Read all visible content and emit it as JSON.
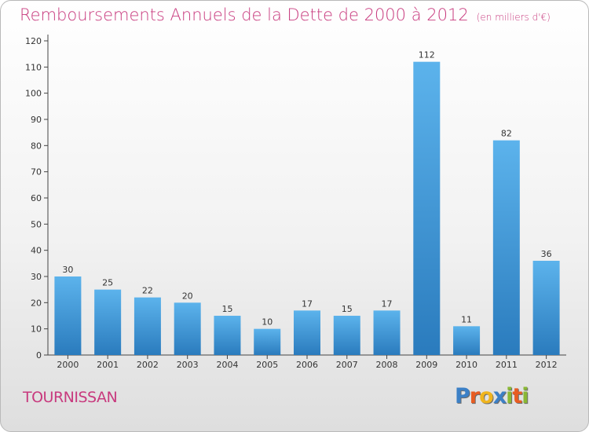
{
  "title": "Remboursements Annuels de la Dette de 2000 à 2012",
  "subtitle": "(en milliers d'€)",
  "location": "TOURNISSAN",
  "brand": {
    "letters": [
      {
        "ch": "P",
        "color": "#3c80c6"
      },
      {
        "ch": "r",
        "color": "#e85c22"
      },
      {
        "ch": "o",
        "color": "#f0b51e"
      },
      {
        "ch": "x",
        "color": "#3c80c6"
      },
      {
        "ch": "i",
        "color": "#8ab834"
      },
      {
        "ch": "t",
        "color": "#e85c22"
      },
      {
        "ch": "i",
        "color": "#8ab834"
      }
    ]
  },
  "colors": {
    "accent": "#c83a7e",
    "bar_top": "#5cb3ec",
    "bar_bottom": "#2a7bbd"
  },
  "chart_data": {
    "type": "bar",
    "categories": [
      "2000",
      "2001",
      "2002",
      "2003",
      "2004",
      "2005",
      "2006",
      "2007",
      "2008",
      "2009",
      "2010",
      "2011",
      "2012"
    ],
    "values": [
      30,
      25,
      22,
      20,
      15,
      10,
      17,
      15,
      17,
      112,
      11,
      82,
      36
    ],
    "ylim": [
      0,
      120
    ],
    "yticks": [
      0,
      10,
      20,
      30,
      40,
      50,
      60,
      70,
      80,
      90,
      100,
      110,
      120
    ],
    "grid": false
  }
}
